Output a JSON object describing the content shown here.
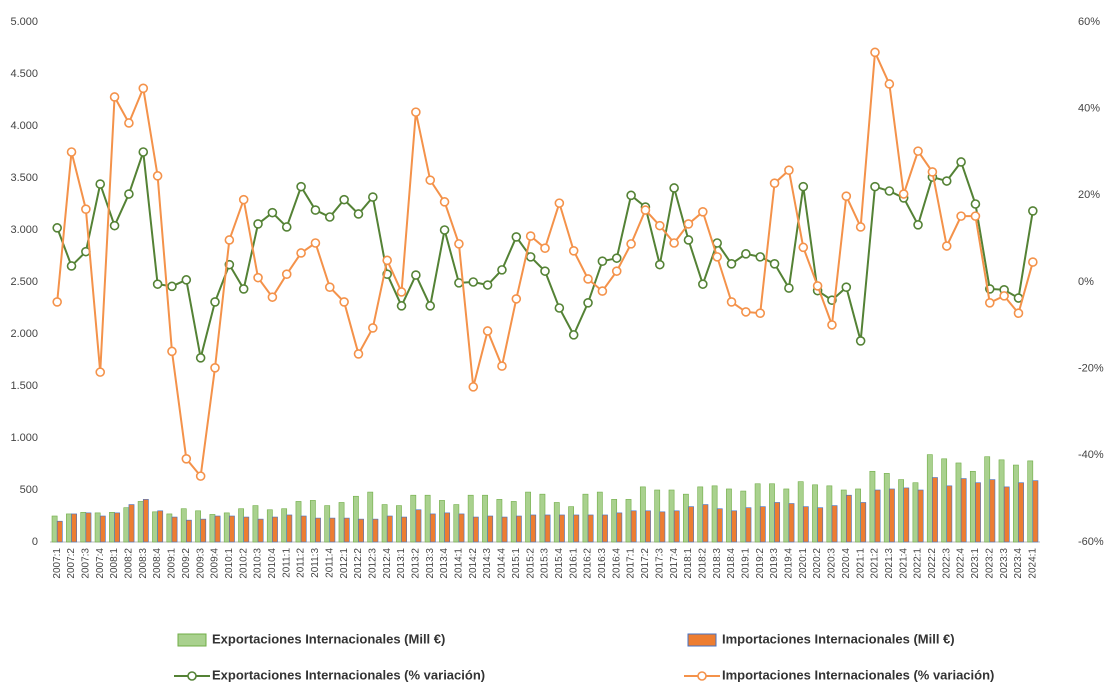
{
  "chart_data": {
    "type": "combo",
    "categories": [
      "2007:1",
      "2007:2",
      "2007:3",
      "2007:4",
      "2008:1",
      "2008:2",
      "2008:3",
      "2008:4",
      "2009:1",
      "2009:2",
      "2009:3",
      "2009:4",
      "2010:1",
      "2010:2",
      "2010:3",
      "2010:4",
      "2011:1",
      "2011:2",
      "2011:3",
      "2011:4",
      "2012:1",
      "2012:2",
      "2012:3",
      "2012:4",
      "2013:1",
      "2013:2",
      "2013:3",
      "2013:4",
      "2014:1",
      "2014:2",
      "2014:3",
      "2014:4",
      "2015:1",
      "2015:2",
      "2015:3",
      "2015:4",
      "2016:1",
      "2016:2",
      "2016:3",
      "2016:4",
      "2017:1",
      "2017:2",
      "2017:3",
      "2017:4",
      "2018:1",
      "2018:2",
      "2018:3",
      "2018:4",
      "2019:1",
      "2019:2",
      "2019:3",
      "2019:4",
      "2020:1",
      "2020:2",
      "2020:3",
      "2020:4",
      "2021:1",
      "2021:2",
      "2021:3",
      "2021:4",
      "2022:1",
      "2022:2",
      "2022:3",
      "2022:4",
      "2023:1",
      "2023:2",
      "2023:3",
      "2023:4",
      "2024:1"
    ],
    "series": [
      {
        "name": "Exportaciones Internacionales (Mill €)",
        "type": "bar",
        "color": "#a9d18e",
        "stroke": "#70ad47",
        "values": [
          250,
          270,
          285,
          280,
          285,
          330,
          390,
          290,
          270,
          320,
          300,
          265,
          280,
          320,
          350,
          310,
          320,
          390,
          400,
          350,
          380,
          440,
          480,
          360,
          350,
          450,
          450,
          400,
          360,
          450,
          450,
          410,
          390,
          480,
          460,
          380,
          340,
          460,
          480,
          410,
          410,
          530,
          500,
          500,
          460,
          530,
          540,
          510,
          490,
          560,
          560,
          510,
          580,
          550,
          540,
          500,
          510,
          680,
          660,
          600,
          570,
          840,
          800,
          760,
          680,
          820,
          790,
          740,
          780
        ]
      },
      {
        "name": "Importaciones Internacionales (Mill €)",
        "type": "bar",
        "color": "#ed7d31",
        "stroke": "#4472c4",
        "values": [
          200,
          270,
          280,
          250,
          280,
          360,
          410,
          300,
          240,
          210,
          220,
          250,
          250,
          240,
          220,
          240,
          260,
          250,
          230,
          230,
          230,
          220,
          220,
          250,
          240,
          310,
          270,
          280,
          270,
          240,
          250,
          240,
          250,
          260,
          260,
          260,
          260,
          260,
          260,
          280,
          300,
          300,
          290,
          300,
          340,
          360,
          320,
          300,
          330,
          340,
          380,
          370,
          340,
          330,
          350,
          450,
          380,
          500,
          510,
          520,
          500,
          620,
          540,
          610,
          570,
          600,
          530,
          570,
          590
        ]
      },
      {
        "name": "Exportaciones Internacionales (% variación)",
        "type": "line",
        "axis": "y2",
        "color": "#548235",
        "values": [
          12.5,
          3.7,
          7,
          22.6,
          13,
          20.3,
          30,
          -0.5,
          -1,
          0.5,
          -17.5,
          -4.6,
          4,
          -1.6,
          13.4,
          16,
          12.7,
          22,
          16.6,
          15,
          19,
          15.7,
          19.6,
          1.8,
          -5.5,
          1.6,
          -5.5,
          12,
          -0.2,
          0,
          -0.7,
          2.8,
          10.4,
          5.8,
          2.5,
          -6,
          -12.2,
          -4.8,
          4.8,
          5.5,
          20,
          17.3,
          4,
          21.7,
          9.7,
          -0.5,
          9,
          4.2,
          6.5,
          5.8,
          4.2,
          -1.4,
          22,
          -2,
          -4.2,
          -1.2,
          -13.6,
          22,
          21,
          19.4,
          13.2,
          24.2,
          23.3,
          27.7,
          18,
          -1.6,
          -1.8,
          -3.7,
          16.4
        ]
      },
      {
        "name": "Importaciones Internacionales (% variación)",
        "type": "line",
        "axis": "y2",
        "color": "#f4924a",
        "values": [
          -4.6,
          30,
          16.8,
          -20.8,
          42.7,
          36.7,
          44.7,
          24.5,
          -16,
          -40.8,
          -44.8,
          -19.8,
          9.7,
          19,
          1,
          -3.5,
          1.8,
          6.7,
          9,
          -1.2,
          -4.6,
          -16.6,
          -10.6,
          5,
          -2.3,
          39.2,
          23.5,
          18.5,
          8.8,
          -24.2,
          -11.3,
          -19.4,
          -3.9,
          10.6,
          7.8,
          18.2,
          7.2,
          0.7,
          -2.1,
          2.5,
          8.8,
          16.6,
          13,
          9,
          13.4,
          16.2,
          5.8,
          -4.6,
          -6.9,
          -7.2,
          22.8,
          25.8,
          8,
          -0.9,
          -9.9,
          19.8,
          12.7,
          53,
          45.7,
          20.3,
          30.2,
          25.4,
          8.3,
          15.2,
          15.2,
          -4.8,
          -3.2,
          -7.2,
          4.6
        ]
      }
    ],
    "ylim": [
      0,
      5000
    ],
    "yticks": [
      0,
      500,
      {
        "value": 1000,
        "label": "1.000"
      },
      {
        "value": 1500,
        "label": "1.500"
      },
      {
        "value": 2000,
        "label": "2.000"
      },
      {
        "value": 2500,
        "label": "2.500"
      },
      {
        "value": 3000,
        "label": "3.000"
      },
      {
        "value": 3500,
        "label": "3.500"
      },
      {
        "value": 4000,
        "label": "4.000"
      },
      {
        "value": 4500,
        "label": "4.500"
      },
      {
        "value": 5000,
        "label": "5.000"
      }
    ],
    "y2lim": [
      -60,
      60
    ],
    "y2ticks": [
      {
        "value": -60,
        "label": "-60%"
      },
      {
        "value": -40,
        "label": "-40%"
      },
      {
        "value": -20,
        "label": "-20%"
      },
      {
        "value": 0,
        "label": "0%"
      },
      {
        "value": 20,
        "label": "20%"
      },
      {
        "value": 40,
        "label": "40%"
      },
      {
        "value": 60,
        "label": "60%"
      }
    ],
    "grid": false
  }
}
